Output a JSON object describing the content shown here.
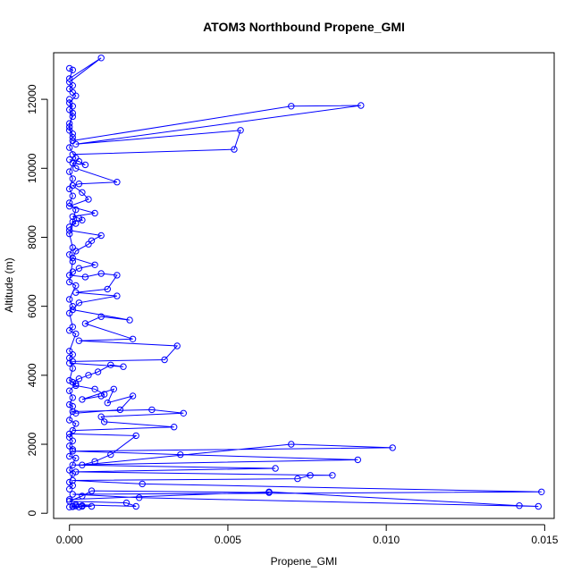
{
  "chart_data": {
    "type": "line",
    "title": "ATOM3 Northbound Propene_GMI",
    "xlabel": "Propene_GMI",
    "ylabel": "Altitude (m)",
    "xlim": [
      -0.0005,
      0.0153
    ],
    "ylim": [
      -150,
      13350
    ],
    "x_ticks": [
      0.0,
      0.005,
      0.01,
      0.015
    ],
    "x_tick_labels": [
      "0.000",
      "0.005",
      "0.010",
      "0.015"
    ],
    "y_ticks": [
      0,
      2000,
      4000,
      6000,
      8000,
      10000,
      12000
    ],
    "y_tick_labels": [
      "0",
      "2000",
      "4000",
      "6000",
      "8000",
      "10000",
      "12000"
    ],
    "grid": false,
    "legend": "none",
    "series_color": "#0000ff",
    "marker": "open-circle",
    "series": [
      {
        "x": [
          0.0,
          0.0001,
          0.0,
          0.001,
          0.0,
          0.0001,
          0.0,
          0.0001,
          0.0002,
          0.0,
          0.0001,
          0.0,
          0.0001,
          0.0,
          0.0,
          0.0001
        ],
        "y": [
          12900,
          12850,
          12600,
          13200,
          12500,
          12400,
          12300,
          12200,
          12100,
          11900,
          11800,
          11700,
          11500,
          11300,
          11100,
          11000
        ]
      },
      {
        "x": [
          0.0001,
          0.007,
          0.0092,
          0.0002,
          0.0054,
          0.0052,
          0.0001
        ],
        "y": [
          10800,
          11800,
          11820,
          10700,
          11100,
          10550,
          10400
        ]
      },
      {
        "x": [
          0.0,
          0.0003,
          0.0005,
          0.0001,
          0.0002,
          0.0015,
          0.0003,
          0.0001,
          0.0004,
          0.0006,
          0.0,
          0.0008,
          0.0001,
          0.0003,
          0.0004,
          0.0001,
          0.0002,
          0.0
        ],
        "y": [
          10250,
          10200,
          10100,
          10150,
          10000,
          9600,
          9550,
          9500,
          9300,
          9100,
          8900,
          8700,
          8600,
          8550,
          8500,
          8450,
          8400,
          8300
        ]
      },
      {
        "x": [
          0.0,
          0.001,
          0.0007,
          0.0006,
          0.0002,
          0.0001,
          0.0008,
          0.0003,
          0.0001,
          0.0,
          0.0005,
          0.001,
          0.0015,
          0.0012,
          0.0002,
          0.0015,
          0.0003,
          0.0001,
          0.0019,
          0.001,
          0.0005,
          0.002,
          0.0003,
          0.0034,
          0.003,
          0.0001
        ],
        "y": [
          8200,
          8050,
          7900,
          7800,
          7600,
          7400,
          7200,
          7100,
          7000,
          6900,
          6850,
          6950,
          6900,
          6500,
          6400,
          6300,
          6100,
          5900,
          5600,
          5700,
          5500,
          5050,
          5000,
          4850,
          4450,
          4400
        ]
      },
      {
        "x": [
          0.0,
          0.0017,
          0.0013,
          0.0009,
          0.0006,
          0.0003,
          0.0001,
          0.0002,
          0.0008,
          0.0011,
          0.001,
          0.0004,
          0.0014,
          0.0012,
          0.002,
          0.0016,
          0.0002,
          0.0001,
          0.0026,
          0.0036,
          0.001,
          0.0011,
          0.0033,
          0.0001
        ],
        "y": [
          4350,
          4250,
          4300,
          4100,
          4000,
          3900,
          3800,
          3700,
          3600,
          3450,
          3400,
          3300,
          3600,
          3200,
          3400,
          3000,
          2900,
          2950,
          3000,
          2900,
          2800,
          2650,
          2500,
          2400
        ]
      },
      {
        "x": [
          0.0,
          0.0021,
          0.0013,
          0.0008,
          0.0004,
          0.007,
          0.0102,
          0.0001,
          0.0035,
          0.0091,
          0.0001,
          0.0065,
          0.0002,
          0.0083,
          0.0076,
          0.0072,
          0.0001,
          0.0023,
          0.0149,
          0.0001,
          0.0022,
          0.0148,
          0.0142,
          0.0063,
          0.0
        ],
        "y": [
          2300,
          2250,
          1700,
          1500,
          1400,
          2000,
          1900,
          1800,
          1700,
          1550,
          1400,
          1300,
          1200,
          1100,
          1100,
          1000,
          950,
          850,
          620,
          550,
          450,
          200,
          220,
          620,
          400
        ]
      },
      {
        "x": [
          0.0063,
          0.0007,
          0.0004,
          0.0,
          0.0018,
          0.0021,
          0.0002,
          0.0001,
          0.0003,
          0.0004,
          0.0007,
          0.0,
          0.0002,
          0.0001,
          0.0004
        ],
        "y": [
          600,
          650,
          500,
          350,
          300,
          200,
          250,
          200,
          180,
          220,
          200,
          180,
          210,
          190,
          200
        ]
      },
      {
        "x": [
          0.0,
          0.0001,
          0.0,
          0.0001,
          0.0,
          0.0002,
          0.0,
          0.0001,
          0.0,
          0.0001,
          0.0,
          0.0002,
          0.0,
          0.0001,
          0.0,
          0.0001,
          0.0,
          0.0002,
          0.0,
          0.0001,
          0.0,
          0.0001,
          0.0,
          0.0002,
          0.0,
          0.0001,
          0.0,
          0.0001,
          0.0,
          0.0002,
          0.0,
          0.0001,
          0.0,
          0.0001,
          0.0,
          0.0002,
          0.0,
          0.0001,
          0.0,
          0.0001,
          0.0,
          0.0002,
          0.0,
          0.0001,
          0.0,
          0.0001,
          0.0
        ],
        "y": [
          12000,
          11600,
          11200,
          10900,
          10600,
          10300,
          9900,
          9700,
          9400,
          9200,
          9000,
          8800,
          8100,
          7700,
          7500,
          7300,
          6700,
          6600,
          6200,
          6000,
          5800,
          5400,
          5300,
          5200,
          4700,
          4600,
          4500,
          4200,
          3850,
          3750,
          3550,
          3350,
          3150,
          3100,
          2700,
          2600,
          2200,
          2100,
          1950,
          1850,
          1650,
          1600,
          1250,
          1150,
          900,
          800,
          700
        ]
      }
    ]
  }
}
